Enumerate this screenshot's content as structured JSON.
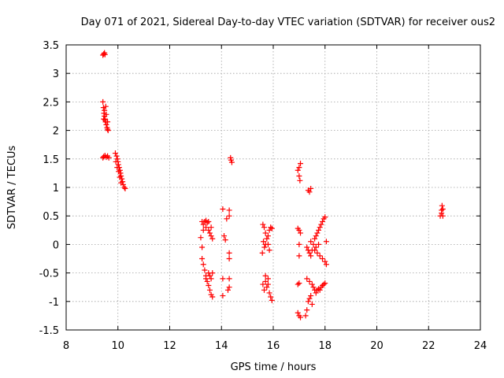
{
  "chart_data": {
    "type": "scatter",
    "title": "Day 071 of 2021, Sidereal Day-to-day VTEC variation (SDTVAR) for receiver ous2",
    "xlabel": "GPS time / hours",
    "ylabel": "SDTVAR / TECUs",
    "xlim": [
      8,
      24
    ],
    "ylim": [
      -1.5,
      3.5
    ],
    "xticks": [
      8,
      10,
      12,
      14,
      16,
      18,
      20,
      22,
      24
    ],
    "yticks": [
      -1.5,
      -1,
      -0.5,
      0,
      0.5,
      1,
      1.5,
      2,
      2.5,
      3,
      3.5
    ],
    "xtick_labels": [
      "8",
      "10",
      "12",
      "14",
      "16",
      "18",
      "20",
      "22",
      "24"
    ],
    "ytick_labels": [
      "-1.5",
      "-1",
      "-0.5",
      "0",
      "0.5",
      "1",
      "1.5",
      "2",
      "2.5",
      "3",
      "3.5"
    ],
    "grid": true,
    "marker": "+",
    "color": "#ff0000",
    "series": [
      {
        "name": "SDTVAR",
        "points": [
          [
            9.42,
            3.32
          ],
          [
            9.45,
            3.34
          ],
          [
            9.48,
            3.36
          ],
          [
            9.5,
            3.33
          ],
          [
            9.42,
            2.5
          ],
          [
            9.44,
            2.4
          ],
          [
            9.46,
            2.3
          ],
          [
            9.48,
            2.25
          ],
          [
            9.5,
            2.2
          ],
          [
            9.52,
            2.15
          ],
          [
            9.55,
            2.1
          ],
          [
            9.58,
            2.05
          ],
          [
            9.6,
            2.02
          ],
          [
            9.62,
            2.0
          ],
          [
            9.45,
            2.2
          ],
          [
            9.5,
            2.18
          ],
          [
            9.55,
            2.28
          ],
          [
            9.6,
            2.15
          ],
          [
            9.48,
            2.35
          ],
          [
            9.53,
            2.42
          ],
          [
            9.42,
            1.52
          ],
          [
            9.45,
            1.54
          ],
          [
            9.5,
            1.56
          ],
          [
            9.55,
            1.53
          ],
          [
            9.6,
            1.55
          ],
          [
            9.65,
            1.52
          ],
          [
            9.9,
            1.6
          ],
          [
            9.95,
            1.55
          ],
          [
            9.98,
            1.5
          ],
          [
            10.0,
            1.45
          ],
          [
            10.02,
            1.4
          ],
          [
            10.05,
            1.35
          ],
          [
            10.08,
            1.3
          ],
          [
            10.1,
            1.25
          ],
          [
            10.12,
            1.2
          ],
          [
            10.15,
            1.15
          ],
          [
            10.18,
            1.1
          ],
          [
            10.2,
            1.05
          ],
          [
            10.25,
            1.0
          ],
          [
            10.28,
            0.98
          ],
          [
            9.92,
            1.45
          ],
          [
            9.97,
            1.35
          ],
          [
            10.03,
            1.28
          ],
          [
            10.07,
            1.18
          ],
          [
            10.12,
            1.08
          ],
          [
            13.25,
            0.4
          ],
          [
            13.3,
            0.35
          ],
          [
            13.35,
            0.4
          ],
          [
            13.4,
            0.3
          ],
          [
            13.45,
            0.38
          ],
          [
            13.5,
            0.25
          ],
          [
            13.55,
            0.2
          ],
          [
            13.6,
            0.15
          ],
          [
            13.65,
            0.1
          ],
          [
            13.3,
            0.25
          ],
          [
            13.4,
            0.42
          ],
          [
            13.5,
            0.4
          ],
          [
            13.6,
            0.3
          ],
          [
            13.25,
            -0.25
          ],
          [
            13.3,
            -0.35
          ],
          [
            13.35,
            -0.45
          ],
          [
            13.4,
            -0.55
          ],
          [
            13.45,
            -0.65
          ],
          [
            13.5,
            -0.72
          ],
          [
            13.55,
            -0.8
          ],
          [
            13.6,
            -0.88
          ],
          [
            13.65,
            -0.92
          ],
          [
            13.4,
            -0.6
          ],
          [
            13.5,
            -0.5
          ],
          [
            13.6,
            -0.6
          ],
          [
            13.65,
            -0.5
          ],
          [
            13.55,
            -0.55
          ],
          [
            13.2,
            0.12
          ],
          [
            13.25,
            -0.05
          ],
          [
            14.05,
            0.62
          ],
          [
            14.3,
            0.6
          ],
          [
            14.3,
            0.5
          ],
          [
            14.2,
            0.45
          ],
          [
            14.1,
            0.15
          ],
          [
            14.15,
            0.08
          ],
          [
            14.05,
            -0.6
          ],
          [
            14.3,
            -0.6
          ],
          [
            14.05,
            -0.9
          ],
          [
            14.3,
            -0.75
          ],
          [
            14.25,
            -0.8
          ],
          [
            14.3,
            -0.25
          ],
          [
            14.3,
            -0.15
          ],
          [
            14.35,
            1.52
          ],
          [
            14.37,
            1.48
          ],
          [
            14.4,
            1.44
          ],
          [
            15.6,
            0.35
          ],
          [
            15.65,
            0.3
          ],
          [
            15.7,
            0.2
          ],
          [
            15.75,
            0.1
          ],
          [
            15.8,
            0.15
          ],
          [
            15.85,
            0.25
          ],
          [
            15.9,
            0.3
          ],
          [
            15.95,
            0.28
          ],
          [
            15.62,
            0.05
          ],
          [
            15.66,
            -0.05
          ],
          [
            15.58,
            -0.15
          ],
          [
            15.7,
            0.0
          ],
          [
            15.8,
            0.0
          ],
          [
            15.85,
            -0.1
          ],
          [
            15.6,
            -0.7
          ],
          [
            15.65,
            -0.8
          ],
          [
            15.7,
            -0.65
          ],
          [
            15.75,
            -0.75
          ],
          [
            15.8,
            -0.7
          ],
          [
            15.85,
            -0.85
          ],
          [
            15.9,
            -0.92
          ],
          [
            15.95,
            -0.98
          ],
          [
            15.7,
            -0.55
          ],
          [
            15.8,
            -0.6
          ],
          [
            16.95,
            1.3
          ],
          [
            17.0,
            1.35
          ],
          [
            17.05,
            1.42
          ],
          [
            17.0,
            1.2
          ],
          [
            17.03,
            1.12
          ],
          [
            16.95,
            0.28
          ],
          [
            17.0,
            0.25
          ],
          [
            17.05,
            0.2
          ],
          [
            17.0,
            0.0
          ],
          [
            17.0,
            -0.2
          ],
          [
            16.95,
            -0.7
          ],
          [
            17.0,
            -0.68
          ],
          [
            16.95,
            -1.2
          ],
          [
            17.0,
            -1.25
          ],
          [
            17.05,
            -1.28
          ],
          [
            17.35,
            0.95
          ],
          [
            17.4,
            0.92
          ],
          [
            17.45,
            0.98
          ],
          [
            17.3,
            -0.05
          ],
          [
            17.35,
            -0.1
          ],
          [
            17.4,
            -0.15
          ],
          [
            17.45,
            -0.2
          ],
          [
            17.5,
            -0.1
          ],
          [
            17.55,
            0.0
          ],
          [
            17.6,
            0.1
          ],
          [
            17.65,
            0.15
          ],
          [
            17.7,
            0.2
          ],
          [
            17.75,
            0.25
          ],
          [
            17.8,
            0.3
          ],
          [
            17.85,
            0.35
          ],
          [
            17.9,
            0.4
          ],
          [
            17.95,
            0.45
          ],
          [
            18.0,
            0.48
          ],
          [
            17.6,
            -0.1
          ],
          [
            17.7,
            -0.15
          ],
          [
            17.8,
            -0.2
          ],
          [
            17.9,
            -0.25
          ],
          [
            18.0,
            -0.3
          ],
          [
            18.05,
            -0.35
          ],
          [
            17.65,
            -0.05
          ],
          [
            17.75,
            0.0
          ],
          [
            17.45,
            0.05
          ],
          [
            18.05,
            0.05
          ],
          [
            17.3,
            -0.6
          ],
          [
            17.4,
            -0.65
          ],
          [
            17.5,
            -0.7
          ],
          [
            17.55,
            -0.75
          ],
          [
            17.6,
            -0.8
          ],
          [
            17.65,
            -0.85
          ],
          [
            17.7,
            -0.8
          ],
          [
            17.75,
            -0.78
          ],
          [
            17.8,
            -0.8
          ],
          [
            17.85,
            -0.75
          ],
          [
            17.9,
            -0.72
          ],
          [
            17.95,
            -0.7
          ],
          [
            18.0,
            -0.68
          ],
          [
            17.35,
            -1.0
          ],
          [
            17.4,
            -0.95
          ],
          [
            17.45,
            -0.9
          ],
          [
            17.5,
            -1.05
          ],
          [
            17.3,
            -1.15
          ],
          [
            17.25,
            -1.25
          ],
          [
            22.45,
            0.5
          ],
          [
            22.5,
            0.6
          ],
          [
            22.52,
            0.68
          ],
          [
            22.55,
            0.62
          ],
          [
            22.5,
            0.55
          ],
          [
            22.55,
            0.5
          ]
        ]
      }
    ]
  }
}
